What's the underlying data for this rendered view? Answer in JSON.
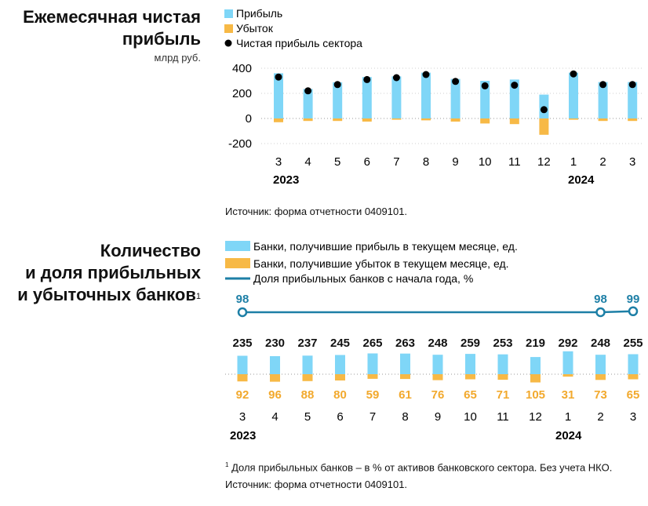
{
  "chart1": {
    "title_line1": "Ежемесячная чистая",
    "title_line2": "прибыль",
    "subtitle": "млрд руб.",
    "source": "Источник: форма отчетности 0409101.",
    "legend": [
      "Прибыль",
      "Убыток",
      "Чистая прибыль сектора"
    ]
  },
  "chart2": {
    "title_line1": "Количество",
    "title_line2": "и доля прибыльных",
    "title_line3": "и убыточных банков",
    "title_sup": "1",
    "legend": [
      "Банки, получившие прибыль в текущем месяце, ед.",
      "Банки, получившие убыток в текущем месяце, ед.",
      "Доля прибыльных банков с начала года, %"
    ],
    "footnote_sup": "1",
    "footnote": "Доля прибыльных банков – в % от активов банковского сектора. Без учета НКО.",
    "source": "Источник: форма отчетности 0409101."
  },
  "colors": {
    "profit": "#7fd6f7",
    "loss": "#f7b946",
    "dot": "#000000",
    "line": "#1d7fa6",
    "loss_label": "#f2a92d"
  },
  "chart_data": [
    {
      "type": "bar",
      "title": "Ежемесячная чистая прибыль",
      "ylabel": "млрд руб.",
      "categories": [
        "3",
        "4",
        "5",
        "6",
        "7",
        "8",
        "9",
        "10",
        "11",
        "12",
        "1",
        "2",
        "3"
      ],
      "year_labels": [
        {
          "year": "2023",
          "at_index": 0
        },
        {
          "year": "2024",
          "at_index": 10
        }
      ],
      "ylim": [
        -200,
        400
      ],
      "yticks": [
        400,
        200,
        0,
        -200
      ],
      "series": [
        {
          "name": "Прибыль",
          "values": [
            360,
            235,
            288,
            330,
            335,
            365,
            315,
            300,
            310,
            190,
            365,
            290,
            290
          ]
        },
        {
          "name": "Убыток",
          "values": [
            -30,
            -20,
            -20,
            -25,
            -10,
            -15,
            -25,
            -40,
            -45,
            -130,
            -10,
            -20,
            -20
          ]
        },
        {
          "name": "Чистая прибыль сектора",
          "values": [
            330,
            220,
            270,
            310,
            325,
            350,
            295,
            260,
            265,
            70,
            355,
            270,
            270
          ]
        }
      ]
    },
    {
      "type": "bar",
      "title": "Количество и доля прибыльных и убыточных банков",
      "categories": [
        "3",
        "4",
        "5",
        "6",
        "7",
        "8",
        "9",
        "10",
        "11",
        "12",
        "1",
        "2",
        "3"
      ],
      "year_labels": [
        {
          "year": "2023",
          "at_index": 0
        },
        {
          "year": "2024",
          "at_index": 10
        }
      ],
      "series": [
        {
          "name": "Банки, получившие прибыль в текущем месяце, ед.",
          "values": [
            235,
            230,
            237,
            245,
            265,
            263,
            248,
            259,
            253,
            219,
            292,
            248,
            255
          ]
        },
        {
          "name": "Банки, получившие убыток в текущем месяце, ед.",
          "values": [
            92,
            96,
            88,
            80,
            59,
            61,
            76,
            65,
            71,
            105,
            31,
            73,
            65
          ]
        },
        {
          "name": "Доля прибыльных банков с начала года, %",
          "x": [
            "3",
            "2",
            "3"
          ],
          "values": [
            98,
            98,
            99
          ]
        }
      ]
    }
  ]
}
